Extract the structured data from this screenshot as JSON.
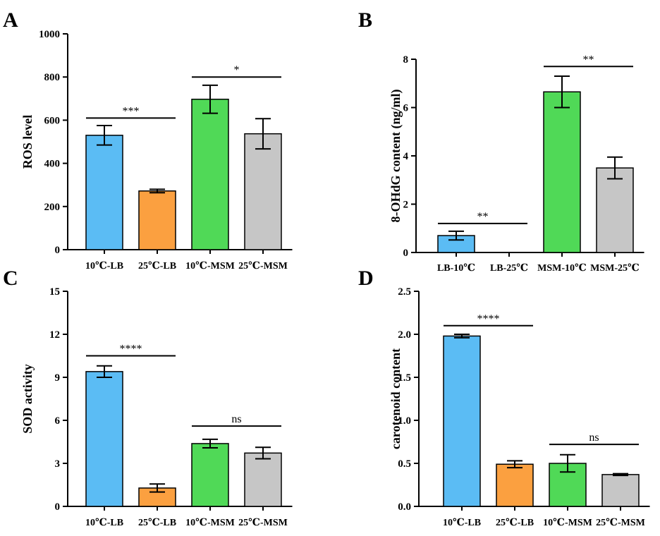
{
  "chart_data": [
    {
      "panel": "A",
      "type": "bar",
      "ylabel": "ROS level",
      "ylim": [
        0,
        1000
      ],
      "yticks": [
        "0",
        "200",
        "400",
        "600",
        "800",
        "1000"
      ],
      "categories": [
        "10℃-LB",
        "25℃-LB",
        "10℃-MSM",
        "25℃-MSM"
      ],
      "values": [
        530,
        272,
        697,
        537
      ],
      "errors": [
        45,
        8,
        65,
        70
      ],
      "colors": [
        "#5bbcf4",
        "#fba040",
        "#50d957",
        "#c6c6c6"
      ],
      "significance": [
        {
          "from": 0,
          "to": 1,
          "y": 610,
          "label": "***"
        },
        {
          "from": 2,
          "to": 3,
          "y": 800,
          "label": "*"
        }
      ]
    },
    {
      "panel": "B",
      "type": "bar",
      "ylabel": "8-OHdG content (ng/ml)",
      "ylim": [
        0,
        8
      ],
      "yticks": [
        "0",
        "2",
        "4",
        "6",
        "8"
      ],
      "categories": [
        "LB-10℃",
        "LB-25℃",
        "MSM-10℃",
        "MSM-25℃"
      ],
      "values": [
        0.7,
        0,
        6.65,
        3.5
      ],
      "errors": [
        0.18,
        0,
        0.65,
        0.45
      ],
      "colors": [
        "#5bbcf4",
        "#fba040",
        "#50d957",
        "#c6c6c6"
      ],
      "significance": [
        {
          "from": 0,
          "to": 1,
          "y": 1.2,
          "label": "**"
        },
        {
          "from": 2,
          "to": 3,
          "y": 7.7,
          "label": "**"
        }
      ]
    },
    {
      "panel": "C",
      "type": "bar",
      "ylabel": "SOD activity",
      "ylim": [
        0,
        15
      ],
      "yticks": [
        "0",
        "3",
        "6",
        "9",
        "12",
        "15"
      ],
      "categories": [
        "10℃-LB",
        "25℃-LB",
        "10℃-MSM",
        "25℃-MSM"
      ],
      "values": [
        9.4,
        1.28,
        4.38,
        3.72
      ],
      "errors": [
        0.4,
        0.28,
        0.3,
        0.4
      ],
      "colors": [
        "#5bbcf4",
        "#fba040",
        "#50d957",
        "#c6c6c6"
      ],
      "significance": [
        {
          "from": 0,
          "to": 1,
          "y": 10.5,
          "label": "****"
        },
        {
          "from": 2,
          "to": 3,
          "y": 5.6,
          "label": "ns"
        }
      ]
    },
    {
      "panel": "D",
      "type": "bar",
      "ylabel": "carotenoid content",
      "ylim": [
        0,
        2.5
      ],
      "yticks": [
        "0.0",
        "0.5",
        "1.0",
        "1.5",
        "2.0",
        "2.5"
      ],
      "categories": [
        "10℃-LB",
        "25℃-LB",
        "10℃-MSM",
        "25℃-MSM"
      ],
      "values": [
        1.98,
        0.49,
        0.5,
        0.37
      ],
      "errors": [
        0.02,
        0.04,
        0.1,
        0.01
      ],
      "colors": [
        "#5bbcf4",
        "#fba040",
        "#50d957",
        "#c6c6c6"
      ],
      "significance": [
        {
          "from": 0,
          "to": 1,
          "y": 2.1,
          "label": "****"
        },
        {
          "from": 2,
          "to": 3,
          "y": 0.72,
          "label": "ns"
        }
      ]
    }
  ]
}
